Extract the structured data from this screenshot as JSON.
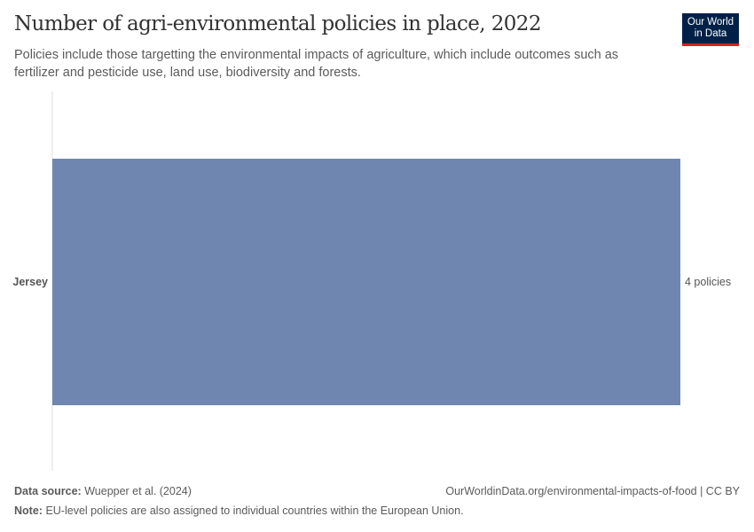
{
  "header": {
    "title": "Number of agri-environmental policies in place, 2022",
    "subtitle": "Policies include those targetting the environmental impacts of agriculture, which include outcomes such as fertilizer and pesticide use, land use, biodiversity and forests.",
    "logo": "Our World in Data"
  },
  "chart_data": {
    "type": "bar",
    "orientation": "horizontal",
    "categories": [
      "Jersey"
    ],
    "values": [
      4
    ],
    "data_labels": [
      "4 policies"
    ],
    "xlim": [
      0,
      4
    ],
    "grid": false,
    "color": "#6f87b0"
  },
  "footer": {
    "source_label": "Data source:",
    "source": "Wuepper et al. (2024)",
    "url": "OurWorldinData.org/environmental-impacts-of-food | CC BY",
    "note_label": "Note:",
    "note": "EU-level policies are also assigned to individual countries within the European Union."
  }
}
